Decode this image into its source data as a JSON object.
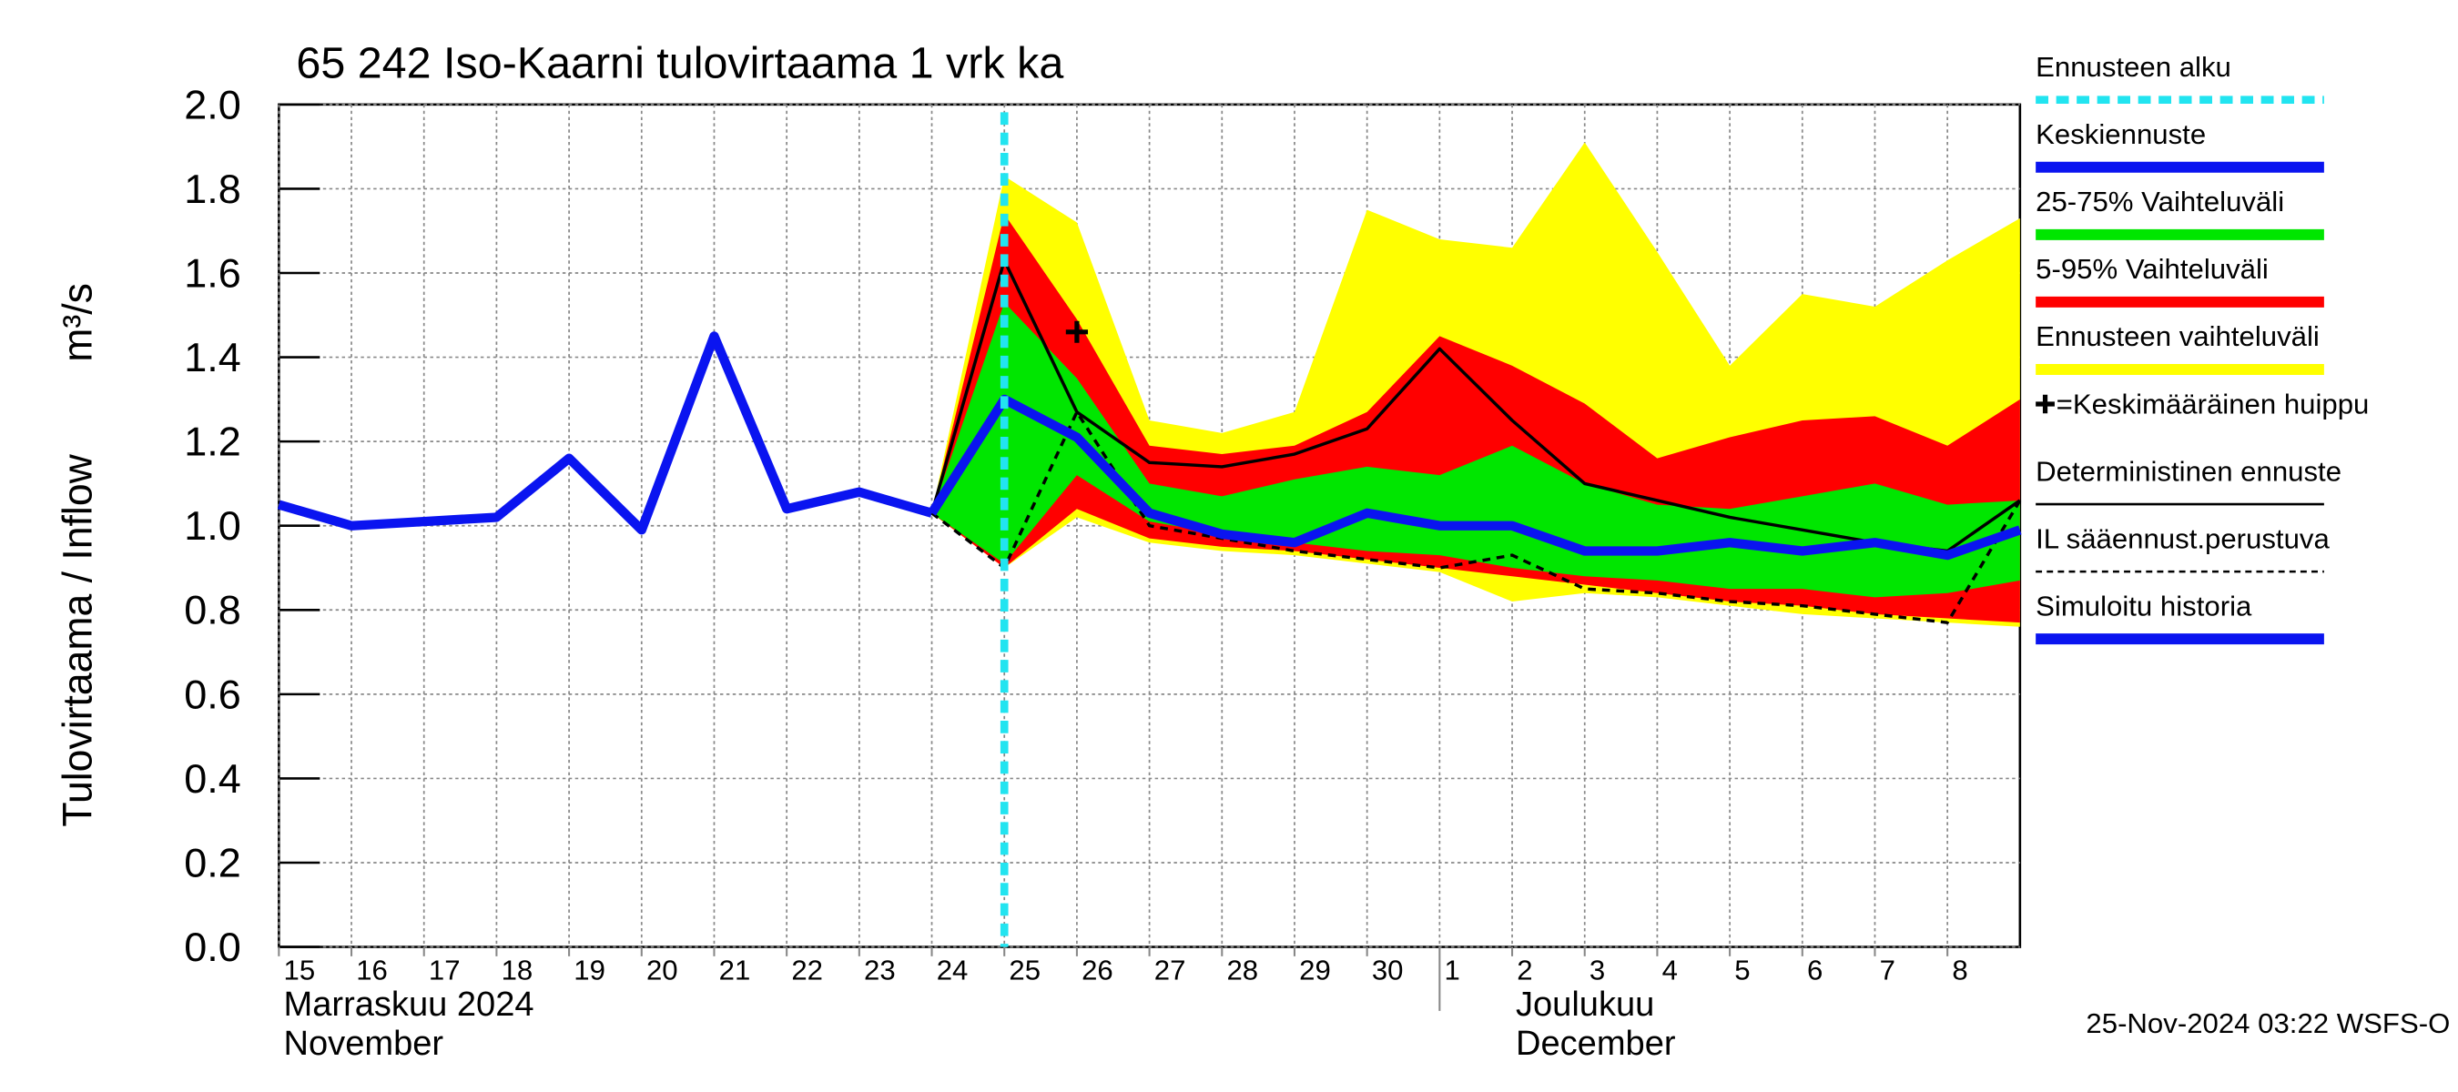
{
  "chart_data": {
    "type": "hydrograph",
    "title": "65 242 Iso-Kaarni tulovirtaama 1 vrk ka",
    "y_label": "Tulovirtaama / Inflow",
    "y_unit": "m³/s",
    "months": [
      {
        "fi": "Marraskuu 2024",
        "en": "November"
      },
      {
        "fi": "Joulukuu",
        "en": "December"
      }
    ],
    "footer": "25-Nov-2024 03:22 WSFS-O",
    "xlim": [
      "2024-11-15",
      "2024-12-09"
    ],
    "xticks": [
      {
        "value": "2024-11-15",
        "label": "15"
      },
      {
        "value": "2024-11-16",
        "label": "16"
      },
      {
        "value": "2024-11-17",
        "label": "17"
      },
      {
        "value": "2024-11-18",
        "label": "18"
      },
      {
        "value": "2024-11-19",
        "label": "19"
      },
      {
        "value": "2024-11-20",
        "label": "20"
      },
      {
        "value": "2024-11-21",
        "label": "21"
      },
      {
        "value": "2024-11-22",
        "label": "22"
      },
      {
        "value": "2024-11-23",
        "label": "23"
      },
      {
        "value": "2024-11-24",
        "label": "24"
      },
      {
        "value": "2024-11-25",
        "label": "25"
      },
      {
        "value": "2024-11-26",
        "label": "26"
      },
      {
        "value": "2024-11-27",
        "label": "27"
      },
      {
        "value": "2024-11-28",
        "label": "28"
      },
      {
        "value": "2024-11-29",
        "label": "29"
      },
      {
        "value": "2024-11-30",
        "label": "30"
      },
      {
        "value": "2024-12-01",
        "label": "1"
      },
      {
        "value": "2024-12-02",
        "label": "2"
      },
      {
        "value": "2024-12-03",
        "label": "3"
      },
      {
        "value": "2024-12-04",
        "label": "4"
      },
      {
        "value": "2024-12-05",
        "label": "5"
      },
      {
        "value": "2024-12-06",
        "label": "6"
      },
      {
        "value": "2024-12-07",
        "label": "7"
      },
      {
        "value": "2024-12-08",
        "label": "8"
      }
    ],
    "ylim": [
      0,
      2
    ],
    "yticks": [
      {
        "value": 0,
        "label": "0.0"
      },
      {
        "value": 0.2,
        "label": "0.2"
      },
      {
        "value": 0.4,
        "label": "0.4"
      },
      {
        "value": 0.6,
        "label": "0.6"
      },
      {
        "value": 0.8,
        "label": "0.8"
      },
      {
        "value": 1,
        "label": "1.0"
      },
      {
        "value": 1.2,
        "label": "1.2"
      },
      {
        "value": 1.4,
        "label": "1.4"
      },
      {
        "value": 1.6,
        "label": "1.6"
      },
      {
        "value": 1.8,
        "label": "1.8"
      },
      {
        "value": 2,
        "label": "2.0"
      }
    ],
    "grid": true,
    "draw_order": [
      4,
      3,
      2,
      6,
      7,
      1,
      8,
      0,
      5
    ],
    "series": [
      {
        "name": "Ennusteen alku",
        "color": "#22e4f0",
        "kind": "vline",
        "style": "dashed",
        "width": 5,
        "x": [
          "2024-11-25"
        ]
      },
      {
        "name": "Keskiennuste",
        "color": "#0a14f0",
        "kind": "line",
        "width": 6,
        "x": [
          "2024-11-24",
          "2024-11-25",
          "2024-11-26",
          "2024-11-27",
          "2024-11-28",
          "2024-11-29",
          "2024-11-30",
          "2024-12-01",
          "2024-12-02",
          "2024-12-03",
          "2024-12-04",
          "2024-12-05",
          "2024-12-06",
          "2024-12-07",
          "2024-12-08",
          "2024-12-09"
        ],
        "values": [
          1.03,
          1.3,
          1.21,
          1.03,
          0.98,
          0.96,
          1.03,
          1.0,
          1.0,
          0.94,
          0.94,
          0.96,
          0.94,
          0.96,
          0.93,
          0.99
        ]
      },
      {
        "name": "25-75% Vaihteluväli",
        "color": "#00e600",
        "kind": "band",
        "x": [
          "2024-11-24",
          "2024-11-25",
          "2024-11-26",
          "2024-11-27",
          "2024-11-28",
          "2024-11-29",
          "2024-11-30",
          "2024-12-01",
          "2024-12-02",
          "2024-12-03",
          "2024-12-04",
          "2024-12-05",
          "2024-12-06",
          "2024-12-07",
          "2024-12-08",
          "2024-12-09"
        ],
        "high": [
          1.03,
          1.53,
          1.35,
          1.1,
          1.07,
          1.11,
          1.14,
          1.12,
          1.19,
          1.1,
          1.05,
          1.04,
          1.07,
          1.1,
          1.05,
          1.06
        ],
        "low": [
          1.03,
          0.91,
          1.12,
          1.01,
          0.98,
          0.96,
          0.94,
          0.93,
          0.9,
          0.88,
          0.87,
          0.85,
          0.85,
          0.83,
          0.84,
          0.87
        ]
      },
      {
        "name": "5-95% Vaihteluväli",
        "color": "#ff0000",
        "kind": "band",
        "x": [
          "2024-11-24",
          "2024-11-25",
          "2024-11-26",
          "2024-11-27",
          "2024-11-28",
          "2024-11-29",
          "2024-11-30",
          "2024-12-01",
          "2024-12-02",
          "2024-12-03",
          "2024-12-04",
          "2024-12-05",
          "2024-12-06",
          "2024-12-07",
          "2024-12-08",
          "2024-12-09"
        ],
        "high": [
          1.03,
          1.74,
          1.49,
          1.19,
          1.17,
          1.19,
          1.27,
          1.45,
          1.38,
          1.29,
          1.16,
          1.21,
          1.25,
          1.26,
          1.19,
          1.3
        ],
        "low": [
          1.03,
          0.9,
          1.04,
          0.97,
          0.95,
          0.94,
          0.92,
          0.9,
          0.88,
          0.86,
          0.84,
          0.82,
          0.81,
          0.79,
          0.78,
          0.77
        ]
      },
      {
        "name": "Ennusteen vaihteluväli",
        "color": "#ffff00",
        "kind": "band",
        "x": [
          "2024-11-24",
          "2024-11-25",
          "2024-11-26",
          "2024-11-27",
          "2024-11-28",
          "2024-11-29",
          "2024-11-30",
          "2024-12-01",
          "2024-12-02",
          "2024-12-03",
          "2024-12-04",
          "2024-12-05",
          "2024-12-06",
          "2024-12-07",
          "2024-12-08",
          "2024-12-09"
        ],
        "high": [
          1.03,
          1.83,
          1.72,
          1.25,
          1.22,
          1.27,
          1.75,
          1.68,
          1.66,
          1.91,
          1.65,
          1.38,
          1.55,
          1.52,
          1.63,
          1.73
        ],
        "low": [
          1.03,
          0.9,
          1.02,
          0.96,
          0.94,
          0.93,
          0.91,
          0.89,
          0.82,
          0.84,
          0.83,
          0.81,
          0.79,
          0.78,
          0.77,
          0.76
        ]
      },
      {
        "name": "=Keskimääräinen huippu",
        "color": "#000000",
        "kind": "marker",
        "x": [
          "2024-11-26"
        ],
        "values": [
          1.46
        ]
      },
      {
        "name": "Deterministinen ennuste",
        "color": "#000000",
        "kind": "line",
        "width": 2,
        "x": [
          "2024-11-24",
          "2024-11-25",
          "2024-11-26",
          "2024-11-27",
          "2024-11-28",
          "2024-11-29",
          "2024-11-30",
          "2024-12-01",
          "2024-12-02",
          "2024-12-03",
          "2024-12-04",
          "2024-12-05",
          "2024-12-06",
          "2024-12-07",
          "2024-12-08",
          "2024-12-09"
        ],
        "values": [
          1.03,
          1.63,
          1.27,
          1.15,
          1.14,
          1.17,
          1.23,
          1.42,
          1.25,
          1.1,
          1.06,
          1.02,
          0.99,
          0.96,
          0.94,
          1.06
        ]
      },
      {
        "name": "IL sääennust.perustuva",
        "color": "#000000",
        "kind": "line",
        "width": 2,
        "style": "dashed",
        "x": [
          "2024-11-24",
          "2024-11-25",
          "2024-11-26",
          "2024-11-27",
          "2024-11-28",
          "2024-11-29",
          "2024-11-30",
          "2024-12-01",
          "2024-12-02",
          "2024-12-03",
          "2024-12-04",
          "2024-12-05",
          "2024-12-06",
          "2024-12-07",
          "2024-12-08",
          "2024-12-09"
        ],
        "values": [
          1.03,
          0.9,
          1.27,
          1.0,
          0.97,
          0.94,
          0.92,
          0.9,
          0.93,
          0.85,
          0.84,
          0.82,
          0.81,
          0.79,
          0.77,
          1.06
        ]
      },
      {
        "name": "Simuloitu historia",
        "color": "#0a14f0",
        "kind": "line",
        "width": 6,
        "x": [
          "2024-11-15",
          "2024-11-16",
          "2024-11-17",
          "2024-11-18",
          "2024-11-19",
          "2024-11-20",
          "2024-11-21",
          "2024-11-22",
          "2024-11-23",
          "2024-11-24"
        ],
        "values": [
          1.05,
          1.0,
          1.01,
          1.02,
          1.16,
          0.99,
          1.45,
          1.04,
          1.08,
          1.03
        ]
      }
    ]
  }
}
